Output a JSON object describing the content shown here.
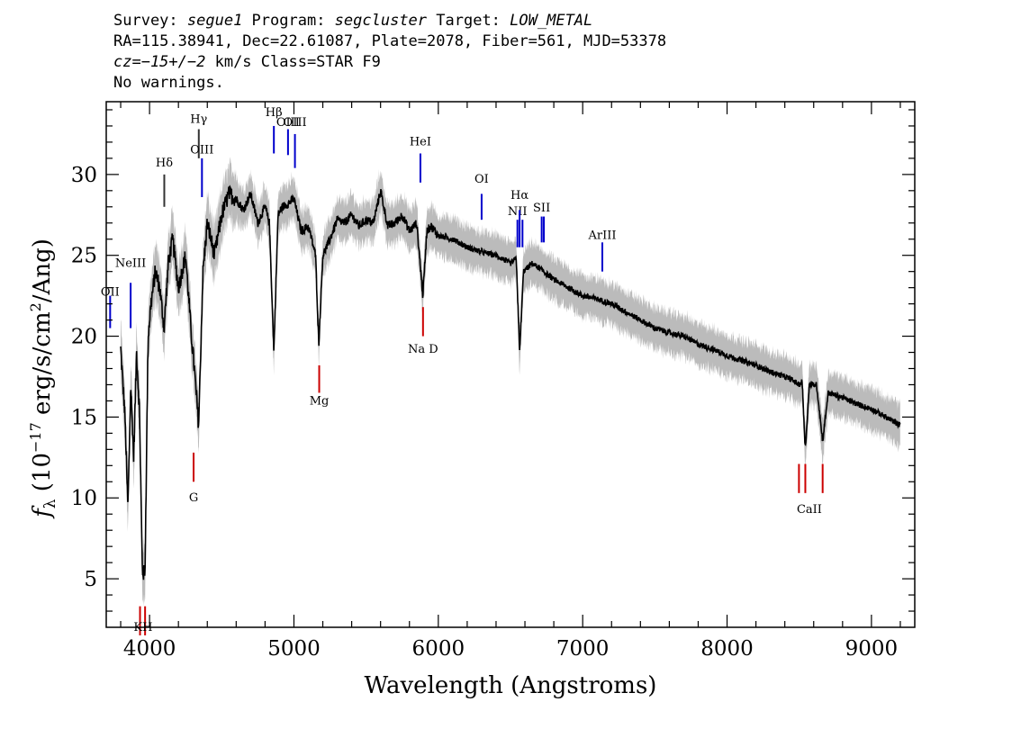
{
  "header": {
    "line1": [
      {
        "t": "Survey: ",
        "i": false
      },
      {
        "t": "segue1",
        "i": true
      },
      {
        "t": " Program: ",
        "i": false
      },
      {
        "t": "segcluster",
        "i": true
      },
      {
        "t": " Target: ",
        "i": false
      },
      {
        "t": "LOW_METAL",
        "i": true
      }
    ],
    "line2": "RA=115.38941, Dec=22.61087, Plate=2078, Fiber=561, MJD=53378",
    "line3": [
      {
        "t": "cz=−15+/−2",
        "i": true
      },
      {
        "t": " km/s Class=STAR F9",
        "i": false
      }
    ],
    "line4": "No warnings."
  },
  "chart_data": {
    "type": "line",
    "xlabel": "Wavelength (Angstroms)",
    "ylabel_parts": {
      "f": "f",
      "sub": "λ",
      "a": " (10",
      "exp1": "−17",
      "b": " erg/s/cm",
      "exp2": "2",
      "c": "/Ang)"
    },
    "xlim": [
      3700,
      9300
    ],
    "ylim": [
      2,
      34.5
    ],
    "x_ticks": [
      4000,
      5000,
      6000,
      7000,
      8000,
      9000
    ],
    "y_ticks": [
      5,
      10,
      15,
      20,
      25,
      30
    ],
    "series": [
      {
        "color": "#000000",
        "error_color": "#bbbbbb",
        "x": [
          3800,
          3830,
          3850,
          3870,
          3890,
          3910,
          3930,
          3950,
          3968,
          3990,
          4010,
          4040,
          4070,
          4101,
          4130,
          4160,
          4200,
          4250,
          4290,
          4310,
          4340,
          4370,
          4400,
          4450,
          4500,
          4550,
          4600,
          4650,
          4700,
          4750,
          4800,
          4830,
          4861,
          4890,
          4920,
          4960,
          5000,
          5050,
          5100,
          5150,
          5172,
          5200,
          5250,
          5300,
          5350,
          5400,
          5450,
          5500,
          5550,
          5600,
          5650,
          5700,
          5750,
          5800,
          5850,
          5893,
          5920,
          5950,
          6000,
          6100,
          6200,
          6300,
          6400,
          6500,
          6540,
          6563,
          6590,
          6650,
          6700,
          6800,
          6900,
          7000,
          7100,
          7200,
          7300,
          7400,
          7500,
          7600,
          7700,
          7800,
          7900,
          8000,
          8100,
          8200,
          8300,
          8400,
          8450,
          8498,
          8520,
          8542,
          8570,
          8620,
          8662,
          8700,
          8800,
          8900,
          9000,
          9100,
          9200
        ],
        "y": [
          19.2,
          15.0,
          9.3,
          17.0,
          12.5,
          19.0,
          15.5,
          5.5,
          5.2,
          20.0,
          22.0,
          24.0,
          23.0,
          20.5,
          24.5,
          26.0,
          23.0,
          25.0,
          20.0,
          18.0,
          14.5,
          24.0,
          27.0,
          25.0,
          27.5,
          28.8,
          28.5,
          27.8,
          28.8,
          27.0,
          28.0,
          27.0,
          19.0,
          27.5,
          28.0,
          28.2,
          28.5,
          26.5,
          26.8,
          25.0,
          19.5,
          25.0,
          26.0,
          27.2,
          27.0,
          27.5,
          26.8,
          27.2,
          27.0,
          29.0,
          26.8,
          27.0,
          27.5,
          26.5,
          27.0,
          22.5,
          26.5,
          26.8,
          26.2,
          26.0,
          25.5,
          25.2,
          25.0,
          24.5,
          24.8,
          19.0,
          24.0,
          24.5,
          24.2,
          23.5,
          23.0,
          22.5,
          22.3,
          22.0,
          21.5,
          21.0,
          20.5,
          20.2,
          20.0,
          19.5,
          19.2,
          18.8,
          18.5,
          18.2,
          17.8,
          17.5,
          17.3,
          17.0,
          17.2,
          13.0,
          17.0,
          17.0,
          13.5,
          16.5,
          16.2,
          15.8,
          15.5,
          15.0,
          14.5
        ]
      }
    ],
    "emission_lines": [
      {
        "label": "OII",
        "x": 3727,
        "y_bottom": 20.5,
        "y_top": 22.5,
        "color": "#0000cc",
        "label_y": 22.5
      },
      {
        "label": "NeIII",
        "x": 3869,
        "y_bottom": 20.5,
        "y_top": 23.3,
        "color": "#0000cc",
        "label_y": 24.3
      },
      {
        "label": "Hδ",
        "x": 4102,
        "y_bottom": 28.0,
        "y_top": 30.0,
        "color": "#333333",
        "label_y": 30.5
      },
      {
        "label": "Hγ",
        "x": 4341,
        "y_bottom": 31.0,
        "y_top": 32.8,
        "color": "#333333",
        "label_y": 33.2
      },
      {
        "label": "OIII",
        "x": 4363,
        "y_bottom": 28.6,
        "y_top": 31.0,
        "color": "#0000cc",
        "label_y": 31.3
      },
      {
        "label": "Hβ",
        "x": 4861,
        "y_bottom": 31.3,
        "y_top": 33.0,
        "color": "#0000cc",
        "label_y": 33.6
      },
      {
        "label": "OIII",
        "x": 4959,
        "y_bottom": 31.2,
        "y_top": 32.8,
        "color": "#0000cc",
        "label_y": 33.0
      },
      {
        "label": "OIII",
        "x": 5007,
        "y_bottom": 30.4,
        "y_top": 32.5,
        "color": "#0000cc",
        "label_y": 33.0
      },
      {
        "label": "HeI",
        "x": 5876,
        "y_bottom": 29.5,
        "y_top": 31.3,
        "color": "#0000cc",
        "label_y": 31.8
      },
      {
        "label": "OI",
        "x": 6300,
        "y_bottom": 27.2,
        "y_top": 28.8,
        "color": "#0000cc",
        "label_y": 29.5
      },
      {
        "label": "NII",
        "x": 6548,
        "y_bottom": 25.5,
        "y_top": 27.2,
        "color": "#0000cc",
        "label_y": 27.5
      },
      {
        "label": "Hα",
        "x": 6563,
        "y_bottom": 25.5,
        "y_top": 27.8,
        "color": "#0000cc",
        "label_y": 28.5
      },
      {
        "label": "NII",
        "x": 6583,
        "y_bottom": 25.5,
        "y_top": 27.2,
        "color": "#0000cc",
        "label_y": null
      },
      {
        "label": "SII",
        "x": 6716,
        "y_bottom": 25.8,
        "y_top": 27.4,
        "color": "#0000cc",
        "label_y": 27.7
      },
      {
        "label": "SII",
        "x": 6731,
        "y_bottom": 25.8,
        "y_top": 27.4,
        "color": "#0000cc",
        "label_y": null
      },
      {
        "label": "ArIII",
        "x": 7136,
        "y_bottom": 24.0,
        "y_top": 25.8,
        "color": "#0000cc",
        "label_y": 26.0
      }
    ],
    "absorption_lines": [
      {
        "label": "K",
        "x": 3934,
        "y_top": 3.3,
        "y_bottom": 1.5,
        "color": "#cc0000"
      },
      {
        "label": "H",
        "x": 3969,
        "y_top": 3.3,
        "y_bottom": 1.5,
        "color": "#cc0000"
      },
      {
        "label": "G",
        "x": 4305,
        "y_top": 12.8,
        "y_bottom": 11.0,
        "color": "#cc0000"
      },
      {
        "label": "Mg",
        "x": 5175,
        "y_top": 18.2,
        "y_bottom": 16.5,
        "color": "#cc0000"
      },
      {
        "label": "Na D",
        "x": 5894,
        "y_top": 21.8,
        "y_bottom": 20.0,
        "color": "#cc0000"
      },
      {
        "label": "CaII",
        "x": 8498,
        "y_top": 12.1,
        "y_bottom": 10.3,
        "color": "#cc0000"
      },
      {
        "label": "",
        "x": 8542,
        "y_top": 12.1,
        "y_bottom": 10.3,
        "color": "#cc0000"
      },
      {
        "label": "",
        "x": 8662,
        "y_top": 12.1,
        "y_bottom": 10.3,
        "color": "#cc0000"
      }
    ],
    "absorption_labels": [
      {
        "label": "KH",
        "x": 3955,
        "y": 2.0
      },
      {
        "label": "G",
        "x": 4305,
        "y": 10.0
      },
      {
        "label": "Mg",
        "x": 5175,
        "y": 16.0
      },
      {
        "label": "Na D",
        "x": 5894,
        "y": 19.2
      },
      {
        "label": "CaII",
        "x": 8570,
        "y": 9.3
      }
    ]
  }
}
